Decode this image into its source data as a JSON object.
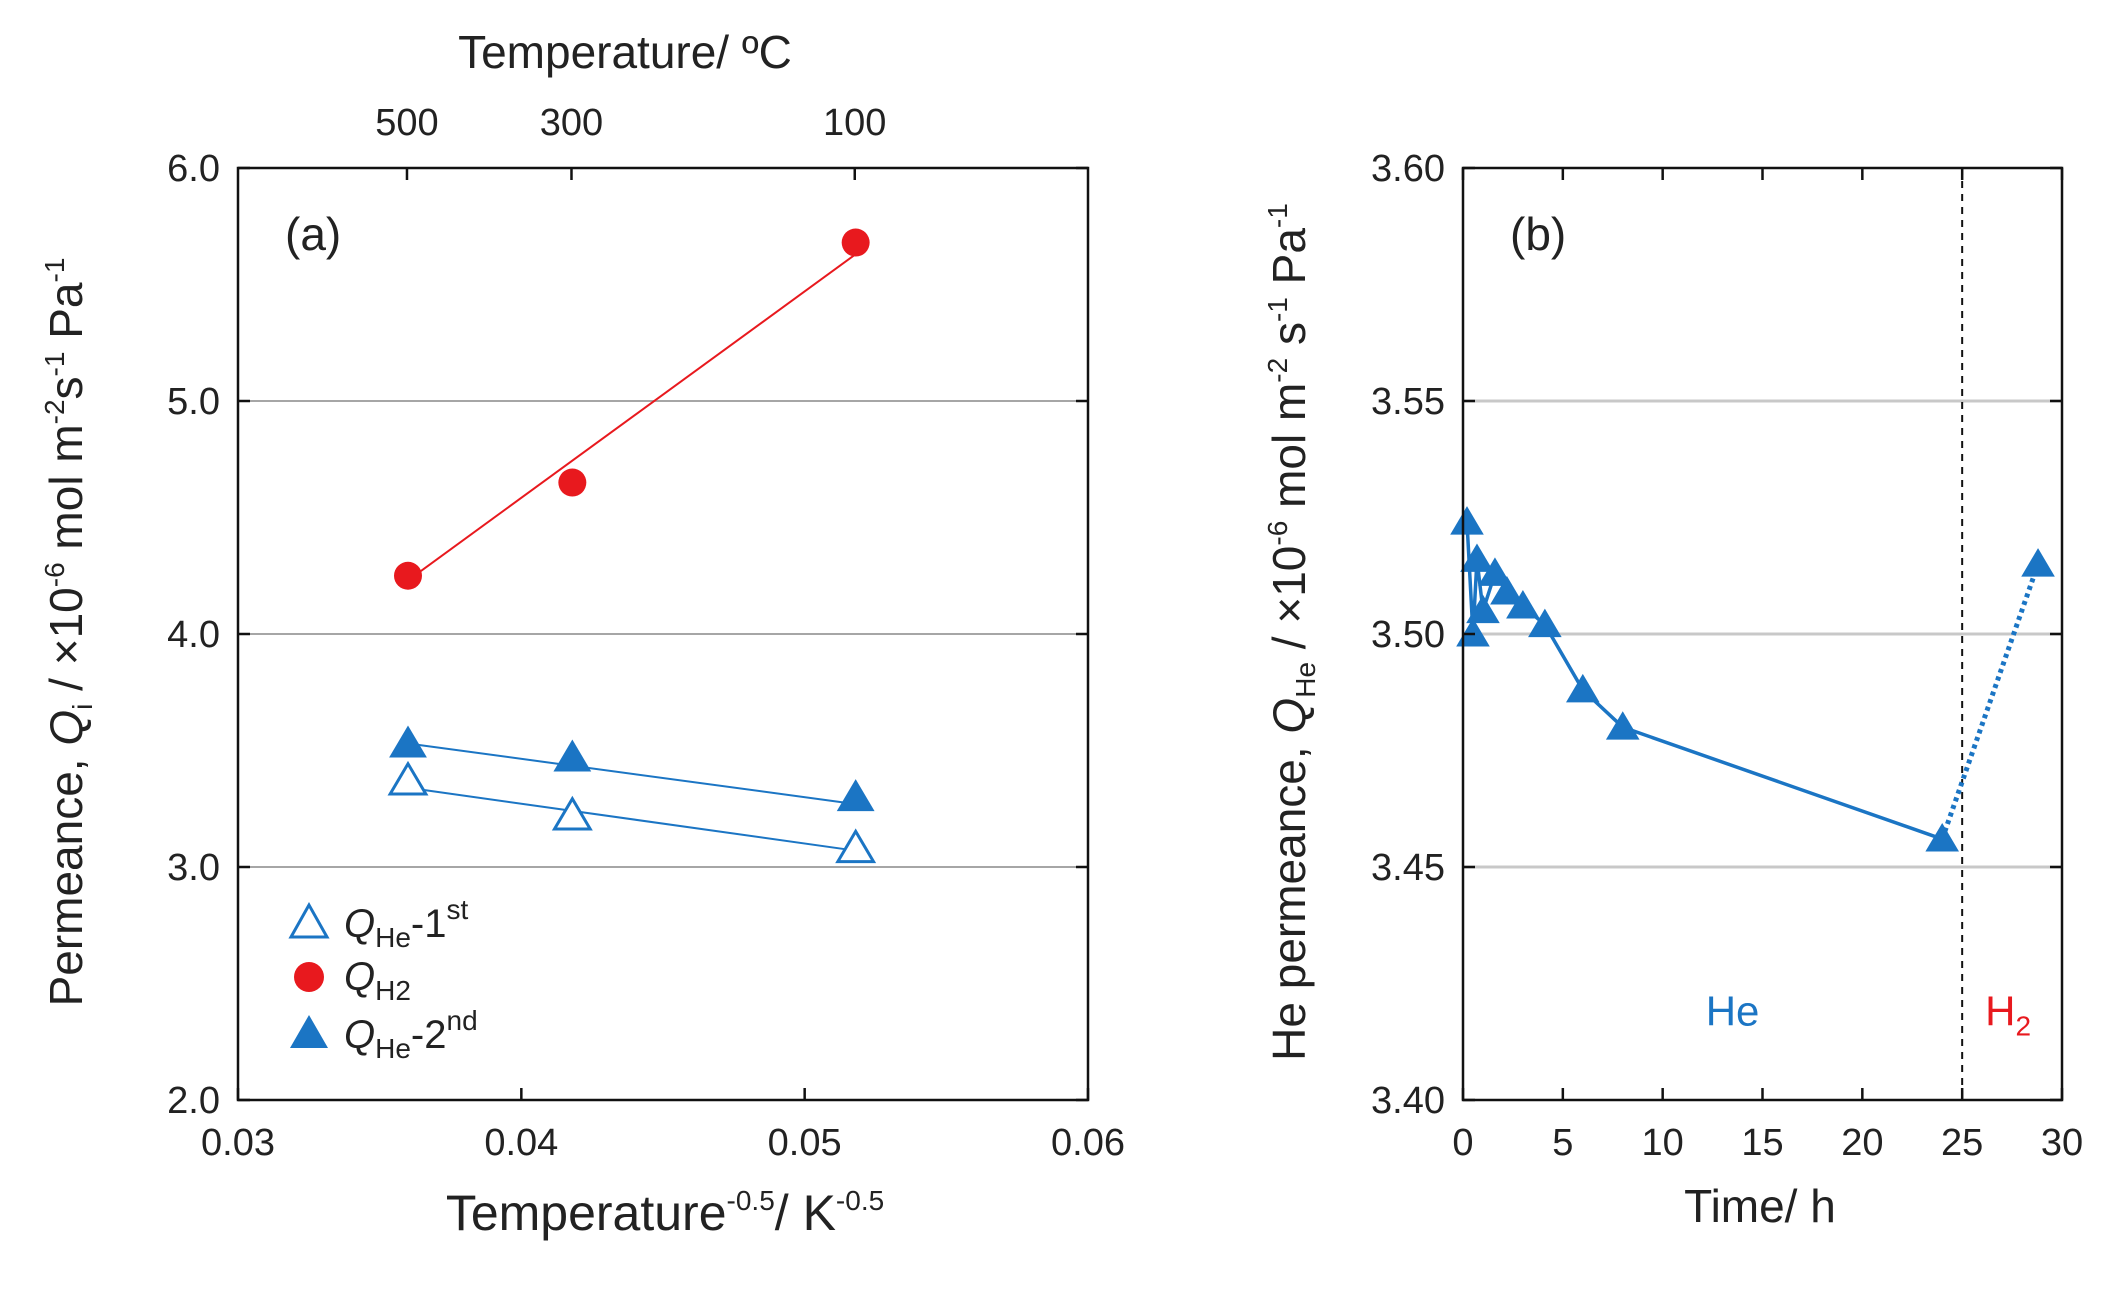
{
  "colors": {
    "he": "#1b75c4",
    "h2": "#e8191e",
    "grid": "#a6a6a6",
    "axis": "#111111",
    "text": "#222222"
  },
  "chart_data": [
    {
      "type": "scatter",
      "panel_label": "(a)",
      "top_axis_label": "Temperature/ ºC",
      "top_ticks": [
        "500",
        "300",
        "100"
      ],
      "xlabel": {
        "base": "Temperature",
        "sup1": "-0.5",
        "mid": "/ K",
        "sup2": "-0.5"
      },
      "ylabel": {
        "p1": "Permeance, ",
        "q": "Q",
        "sub": "i",
        "p2": " / ×10",
        "sup1": "-6",
        "p3": " mol m",
        "sup2": "-2",
        "p4": "s",
        "sup3": "-1",
        "p5": " Pa",
        "sup4": "-1"
      },
      "xlim": [
        0.03,
        0.06
      ],
      "ylim": [
        2.0,
        6.0
      ],
      "x_ticks": [
        "0.03",
        "0.04",
        "0.05",
        "0.06"
      ],
      "y_ticks": [
        "2.0",
        "3.0",
        "4.0",
        "5.0",
        "6.0"
      ],
      "grid": "horizontal",
      "legend_position": "bottom-left",
      "series": [
        {
          "key": "he1",
          "legend": {
            "q": "Q",
            "sub": "He",
            "suffix": "-1",
            "sup": "st"
          },
          "marker": "triangle-open",
          "x": [
            0.036,
            0.0418,
            0.0518
          ],
          "y": [
            3.37,
            3.22,
            3.08
          ],
          "fit_line": [
            [
              0.036,
              3.34
            ],
            [
              0.0518,
              3.07
            ]
          ]
        },
        {
          "key": "h2",
          "legend": {
            "q": "Q",
            "sub": "H2",
            "suffix": "",
            "sup": ""
          },
          "marker": "circle-filled",
          "x": [
            0.036,
            0.0418,
            0.0518
          ],
          "y": [
            4.25,
            4.65,
            5.68
          ],
          "fit_line": [
            [
              0.036,
              4.23
            ],
            [
              0.0518,
              5.63
            ]
          ]
        },
        {
          "key": "he2",
          "legend": {
            "q": "Q",
            "sub": "He",
            "suffix": "-2",
            "sup": "nd"
          },
          "marker": "triangle-filled",
          "x": [
            0.036,
            0.0418,
            0.0518
          ],
          "y": [
            3.53,
            3.47,
            3.3
          ],
          "fit_line": [
            [
              0.036,
              3.53
            ],
            [
              0.0518,
              3.27
            ]
          ]
        }
      ]
    },
    {
      "type": "line",
      "panel_label": "(b)",
      "xlabel": "Time/ h",
      "ylabel": {
        "p1": "He permeance, ",
        "q": "Q",
        "sub": "He",
        "p2": " / ×10",
        "sup1": "-6",
        "p3": " mol m",
        "sup2": "-2",
        "p4": " s",
        "sup3": "-1",
        "p5": " Pa",
        "sup4": "-1"
      },
      "xlim": [
        0,
        30
      ],
      "ylim": [
        3.4,
        3.6
      ],
      "x_ticks": [
        "0",
        "5",
        "10",
        "15",
        "20",
        "25",
        "30"
      ],
      "y_ticks": [
        "3.40",
        "3.45",
        "3.50",
        "3.55",
        "3.60"
      ],
      "grid": "horizontal",
      "divider_x": 25,
      "region_labels": [
        {
          "text": "He",
          "sub": "",
          "x": 13.5,
          "y": 3.416,
          "color_key": "he"
        },
        {
          "text": "H",
          "sub": "2",
          "x": 27.3,
          "y": 3.416,
          "color_key": "h2"
        }
      ],
      "series": [
        {
          "name": "He",
          "x": [
            0.2,
            0.5,
            0.7,
            1.0,
            1.6,
            2.2,
            3.0,
            4.1,
            6.0,
            8.0,
            24.0
          ],
          "y": [
            3.524,
            3.5,
            3.516,
            3.505,
            3.513,
            3.509,
            3.506,
            3.502,
            3.488,
            3.48,
            3.456
          ]
        },
        {
          "name": "H2",
          "line_style": "dotted",
          "x": [
            24.0,
            28.8
          ],
          "y": [
            3.456,
            3.515
          ]
        }
      ]
    }
  ]
}
